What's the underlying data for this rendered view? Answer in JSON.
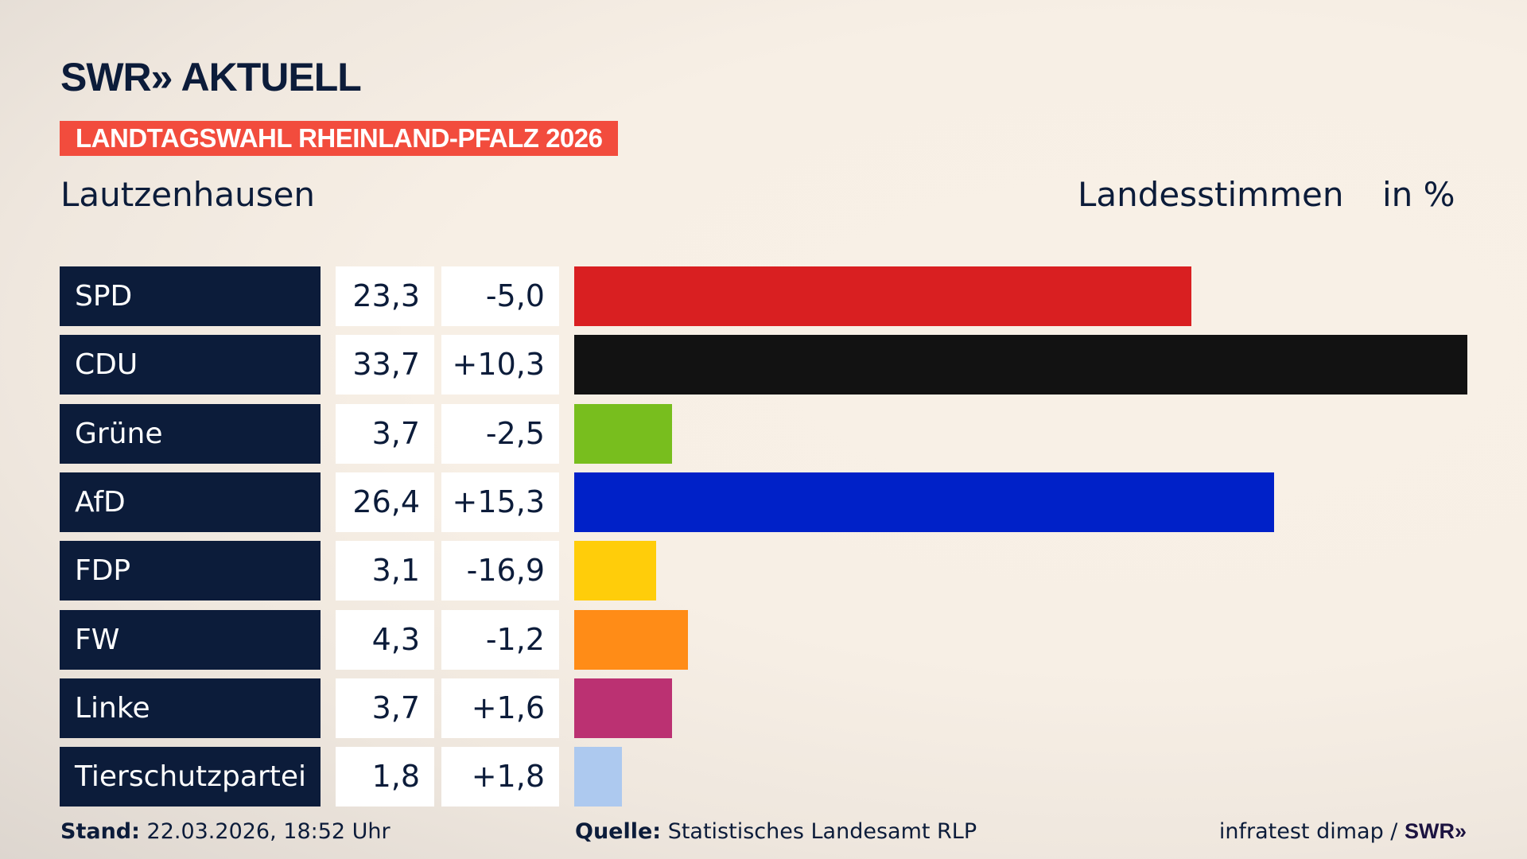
{
  "header": {
    "logo": "SWR» AKTUELL",
    "banner": "LANDTAGSWAHL RHEINLAND-PFALZ 2026",
    "place": "Lautzenhausen",
    "vote_type": "Landesstimmen",
    "unit": "in %"
  },
  "chart_data": {
    "type": "bar",
    "orientation": "horizontal",
    "categories": [
      "SPD",
      "CDU",
      "Grüne",
      "AfD",
      "FDP",
      "FW",
      "Linke",
      "Tierschutzpartei"
    ],
    "values": [
      23.3,
      33.7,
      3.7,
      26.4,
      3.1,
      4.3,
      3.7,
      1.8
    ],
    "value_labels": [
      "23,3",
      "33,7",
      "3,7",
      "26,4",
      "3,1",
      "4,3",
      "3,7",
      "1,8"
    ],
    "diffs": [
      "-5,0",
      "+10,3",
      "-2,5",
      "+15,3",
      "-16,9",
      "-1,2",
      "+1,6",
      "+1,8"
    ],
    "colors": [
      "#d91f21",
      "#121212",
      "#78be1e",
      "#0021c8",
      "#ffcd0a",
      "#ff8c17",
      "#bb3172",
      "#adc9ef"
    ]
  },
  "footer": {
    "stand_label": "Stand:",
    "stand_value": "22.03.2026, 18:52 Uhr",
    "source_label": "Quelle:",
    "source_value": "Statistisches Landesamt RLP",
    "credit": "infratest dimap / ",
    "credit_logo": "SWR»"
  }
}
